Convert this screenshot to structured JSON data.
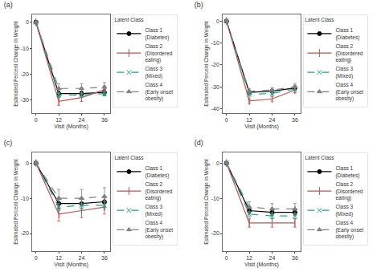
{
  "chart_data": [
    {
      "type": "line",
      "title": "(a)",
      "x_label": "Visit (Months)",
      "y_label": "Estimated Percent Change in Weight",
      "legend_title": "Latent Class",
      "x": [
        0,
        12,
        24,
        36
      ],
      "xlim": [
        -2,
        39
      ],
      "xticks": [
        0,
        12,
        24,
        36
      ],
      "ylim": [
        -35,
        3
      ],
      "yticks": [
        0,
        -10,
        -20,
        -30
      ],
      "grid": false,
      "series": [
        {
          "name": "Class 1\n(Diabetes)",
          "color": "#000000",
          "marker": "circle",
          "line_style": "solid",
          "values": [
            0,
            -27.5,
            -27.5,
            -27.0
          ],
          "errors": [
            0,
            1.0,
            1.0,
            1.2
          ]
        },
        {
          "name": "Class 2\n(Disordered\neating)",
          "color": "#C0504D",
          "marker": "vline",
          "line_style": "solid",
          "values": [
            0,
            -30.5,
            -29.0,
            -26.0
          ],
          "errors": [
            0,
            1.5,
            1.5,
            1.5
          ]
        },
        {
          "name": "Class 3\n(Mixed)",
          "color": "#17A589",
          "marker": "x",
          "line_style": "dashed",
          "values": [
            0,
            -28.0,
            -28.0,
            -27.5
          ],
          "errors": [
            0,
            0.8,
            0.8,
            0.8
          ]
        },
        {
          "name": "Class 4\n(Early onset\nobesity)",
          "color": "#808080",
          "marker": "triangle",
          "line_style": "dashed",
          "values": [
            0,
            -25.5,
            -25.5,
            -25.0
          ],
          "errors": [
            0,
            1.8,
            1.8,
            1.8
          ]
        }
      ]
    },
    {
      "type": "line",
      "title": "(b)",
      "x_label": "Visit (Months)",
      "y_label": "Estimated Percent Change in Weight",
      "legend_title": "Latent Class",
      "x": [
        0,
        12,
        24,
        36
      ],
      "xlim": [
        -2,
        39
      ],
      "xticks": [
        0,
        12,
        24,
        36
      ],
      "ylim": [
        -42,
        3
      ],
      "yticks": [
        0,
        -10,
        -20,
        -30,
        -40
      ],
      "grid": false,
      "series": [
        {
          "name": "Class 1\n(Diabetes)",
          "color": "#000000",
          "marker": "circle",
          "line_style": "solid",
          "values": [
            0,
            -32.5,
            -32.0,
            -30.5
          ],
          "errors": [
            0,
            0.8,
            0.8,
            1.0
          ]
        },
        {
          "name": "Class 2\n(Disordered\neating)",
          "color": "#C0504D",
          "marker": "vline",
          "line_style": "solid",
          "values": [
            0,
            -36.5,
            -35.5,
            -31.5
          ],
          "errors": [
            0,
            1.0,
            1.0,
            1.2
          ]
        },
        {
          "name": "Class 3\n(Mixed)",
          "color": "#17A589",
          "marker": "x",
          "line_style": "dashed",
          "values": [
            0,
            -33.5,
            -33.0,
            -31.0
          ],
          "errors": [
            0,
            0.8,
            0.8,
            0.8
          ]
        },
        {
          "name": "Class 4\n(Early onset\nobesity)",
          "color": "#808080",
          "marker": "triangle",
          "line_style": "dashed",
          "values": [
            0,
            -32.0,
            -31.5,
            -30.0
          ],
          "errors": [
            0,
            1.2,
            1.2,
            1.5
          ]
        }
      ]
    },
    {
      "type": "line",
      "title": "(c)",
      "x_label": "Visit (Months)",
      "y_label": "Estimated Percent Change in Weight",
      "legend_title": "Latent Class",
      "x": [
        0,
        12,
        24,
        36
      ],
      "xlim": [
        -2,
        39
      ],
      "xticks": [
        0,
        12,
        24,
        36
      ],
      "ylim": [
        -25,
        3
      ],
      "yticks": [
        0,
        -10,
        -20
      ],
      "grid": false,
      "series": [
        {
          "name": "Class 1\n(Diabetes)",
          "color": "#000000",
          "marker": "circle",
          "line_style": "solid",
          "values": [
            0,
            -11.5,
            -11.5,
            -11.0
          ],
          "errors": [
            0,
            1.5,
            1.5,
            1.5
          ]
        },
        {
          "name": "Class 2\n(Disordered\neating)",
          "color": "#C0504D",
          "marker": "vline",
          "line_style": "solid",
          "values": [
            0,
            -14.5,
            -13.5,
            -12.5
          ],
          "errors": [
            0,
            2.0,
            2.0,
            2.0
          ]
        },
        {
          "name": "Class 3\n(Mixed)",
          "color": "#17A589",
          "marker": "x",
          "line_style": "dashed",
          "values": [
            0,
            -12.5,
            -12.0,
            -12.0
          ],
          "errors": [
            0,
            1.0,
            1.0,
            1.0
          ]
        },
        {
          "name": "Class 4\n(Early onset\nobesity)",
          "color": "#808080",
          "marker": "triangle",
          "line_style": "dashed",
          "values": [
            0,
            -10.0,
            -10.0,
            -9.5
          ],
          "errors": [
            0,
            2.5,
            2.5,
            2.5
          ]
        }
      ]
    },
    {
      "type": "line",
      "title": "(d)",
      "x_label": "Visit (Months)",
      "y_label": "Estimated Percent Change in Weight",
      "legend_title": "Latent Class",
      "x": [
        0,
        12,
        24,
        36
      ],
      "xlim": [
        -2,
        39
      ],
      "xticks": [
        0,
        12,
        24,
        36
      ],
      "ylim": [
        -25,
        3
      ],
      "yticks": [
        0,
        -10,
        -20
      ],
      "grid": false,
      "series": [
        {
          "name": "Class 1\n(Diabetes)",
          "color": "#000000",
          "marker": "circle",
          "line_style": "solid",
          "values": [
            0,
            -13.5,
            -14.0,
            -14.0
          ],
          "errors": [
            0,
            0.8,
            0.8,
            0.8
          ]
        },
        {
          "name": "Class 2\n(Disordered\neating)",
          "color": "#C0504D",
          "marker": "vline",
          "line_style": "solid",
          "values": [
            0,
            -17.0,
            -17.0,
            -17.0
          ],
          "errors": [
            0,
            1.2,
            1.2,
            1.2
          ]
        },
        {
          "name": "Class 3\n(Mixed)",
          "color": "#17A589",
          "marker": "x",
          "line_style": "dashed",
          "values": [
            0,
            -14.5,
            -15.0,
            -15.0
          ],
          "errors": [
            0,
            0.8,
            0.8,
            0.8
          ]
        },
        {
          "name": "Class 4\n(Early onset\nobesity)",
          "color": "#808080",
          "marker": "triangle",
          "line_style": "dashed",
          "values": [
            0,
            -12.5,
            -13.0,
            -13.0
          ],
          "errors": [
            0,
            1.5,
            1.5,
            1.5
          ]
        }
      ]
    }
  ]
}
